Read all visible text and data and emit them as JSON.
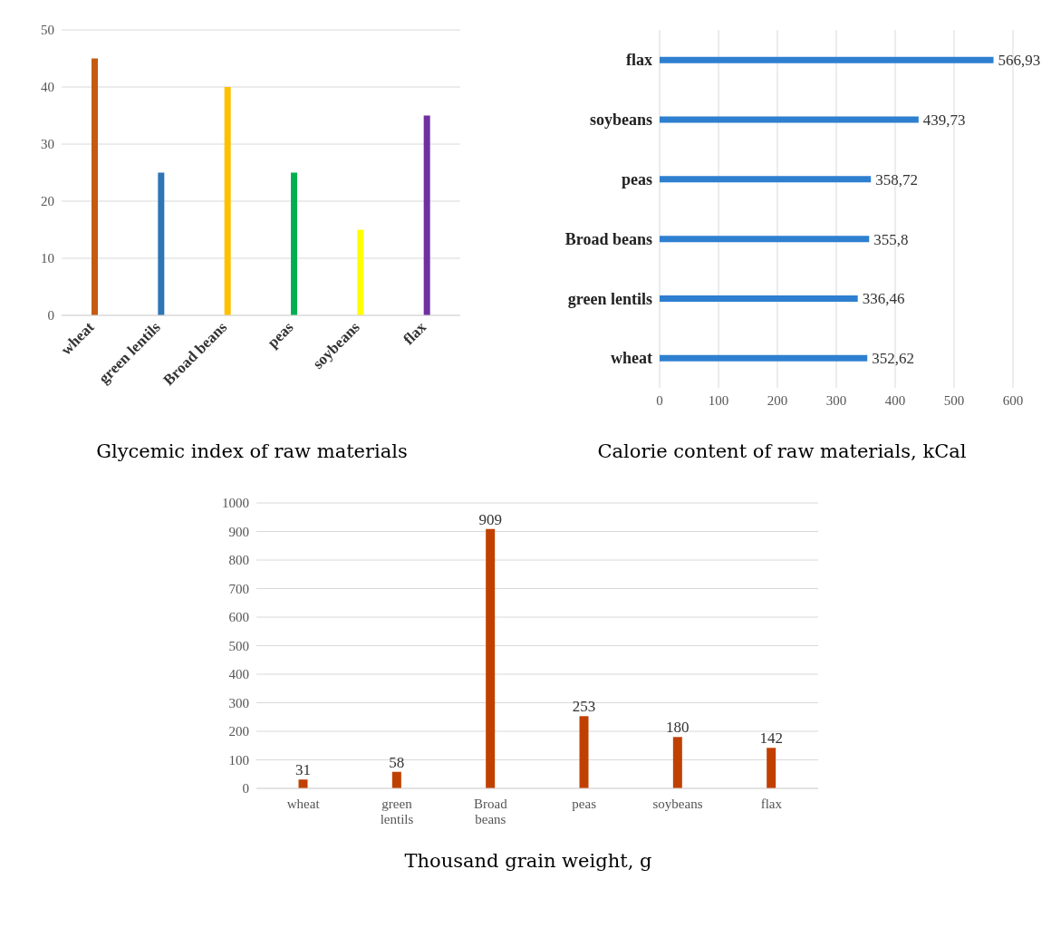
{
  "chart_data": [
    {
      "type": "bar",
      "title": "Glycemic index of raw materials",
      "categories": [
        "wheat",
        "green lentils",
        "Broad beans",
        "peas",
        "soybeans",
        "flax"
      ],
      "values": [
        45,
        25,
        40,
        25,
        15,
        35
      ],
      "colors": [
        "#c55a11",
        "#2e75b6",
        "#ffc000",
        "#00b050",
        "#ffff00",
        "#7030a0"
      ],
      "ylim": [
        0,
        50
      ],
      "yticks": [
        0,
        10,
        20,
        30,
        40,
        50
      ],
      "grid": "y"
    },
    {
      "type": "bar",
      "orientation": "horizontal",
      "title": "Calorie content of raw materials, kCal",
      "categories": [
        "flax",
        "soybeans",
        "peas",
        "Broad beans",
        "green lentils",
        "wheat"
      ],
      "values": [
        566.93,
        439.73,
        358.72,
        355.8,
        336.46,
        352.62
      ],
      "value_labels": [
        "566,93",
        "439,73",
        "358,72",
        "355,8",
        "336,46",
        "352,62"
      ],
      "color": "#2e7fd0",
      "xlim": [
        0,
        600
      ],
      "xticks": [
        0,
        100,
        200,
        300,
        400,
        500,
        600
      ],
      "grid": "x"
    },
    {
      "type": "bar",
      "title": "Thousand grain weight, g",
      "categories": [
        "wheat",
        "green lentils",
        "Broad beans",
        "peas",
        "soybeans",
        "flax"
      ],
      "values": [
        31,
        58,
        909,
        253,
        180,
        142
      ],
      "color": "#c04000",
      "data_labels": true,
      "ylim": [
        0,
        1000
      ],
      "yticks": [
        0,
        100,
        200,
        300,
        400,
        500,
        600,
        700,
        800,
        900,
        1000
      ],
      "grid": "y"
    }
  ]
}
